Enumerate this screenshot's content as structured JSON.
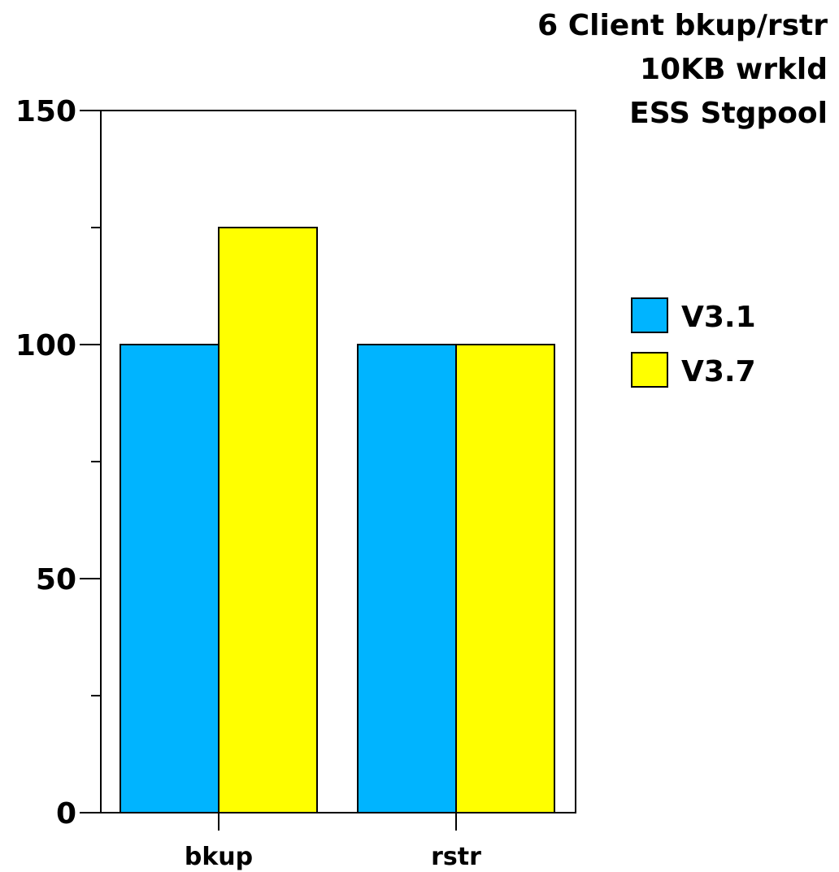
{
  "chart_data": {
    "type": "bar",
    "title_lines": [
      "6 Client bkup/rstr",
      "10KB wrkld",
      "ESS Stgpool"
    ],
    "categories": [
      "bkup",
      "rstr"
    ],
    "series": [
      {
        "name": "V3.1",
        "values": [
          100,
          100
        ],
        "color": "#00b4ff"
      },
      {
        "name": "V3.7",
        "values": [
          125,
          100
        ],
        "color": "#ffff00"
      }
    ],
    "ylim": [
      0,
      150
    ],
    "y_ticks_major": [
      0,
      50,
      100,
      150
    ],
    "y_ticks_minor": [
      25,
      75,
      125
    ],
    "grid": false,
    "legend_position": "right"
  }
}
